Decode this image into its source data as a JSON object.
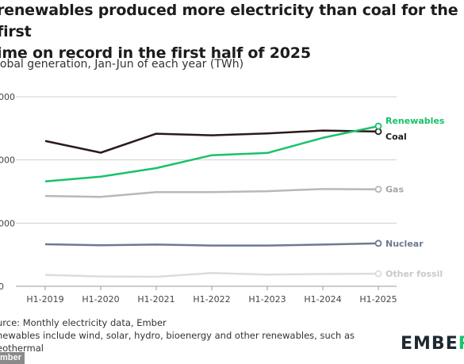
{
  "header": {
    "title": "renewables produced more electricity than coal for the first\nime on record in the first half of 2025",
    "subtitle": "lobal generation, Jan-Jun of each year (TWh)"
  },
  "footer": {
    "source": "urce: Monthly electricity data, Ember",
    "note_line1": "newables include wind, solar, hydro, bioenergy and other renewables, such as",
    "note_line2": "eothermal"
  },
  "logo": {
    "text_main": "EMBE",
    "text_accent": "R"
  },
  "photo_credit": "mber",
  "chart_data": {
    "type": "line",
    "title": "renewables produced more electricity than coal for the first ime on record in the first half of 2025",
    "ylabel": "lobal generation, Jan-Jun of each year (TWh)",
    "x": [
      "H1-2019",
      "H1-2020",
      "H1-2021",
      "H1-2022",
      "H1-2023",
      "H1-2024",
      "H1-2025"
    ],
    "y_tick_labels": [
      "0",
      "000",
      "000",
      "000"
    ],
    "y_tick_values": [
      0,
      2000,
      4000,
      6000
    ],
    "ylim": [
      0,
      6000
    ],
    "grid": true,
    "legend": "direct labels at line ends",
    "series": [
      {
        "name": "Renewables",
        "color": "#17c26a",
        "values": [
          3320,
          3470,
          3740,
          4150,
          4220,
          4700,
          5070
        ]
      },
      {
        "name": "Coal",
        "color": "#2b1a1a",
        "values": [
          4600,
          4230,
          4830,
          4780,
          4840,
          4930,
          4900
        ]
      },
      {
        "name": "Gas",
        "color": "#b8b8b8",
        "values": [
          2860,
          2830,
          2980,
          2980,
          3010,
          3080,
          3070
        ]
      },
      {
        "name": "Nuclear",
        "color": "#6d7a90",
        "values": [
          1330,
          1300,
          1320,
          1290,
          1290,
          1320,
          1360
        ]
      },
      {
        "name": "Other fossil",
        "color": "#dcdcdc",
        "values": [
          360,
          310,
          300,
          420,
          370,
          390,
          400
        ]
      }
    ]
  }
}
